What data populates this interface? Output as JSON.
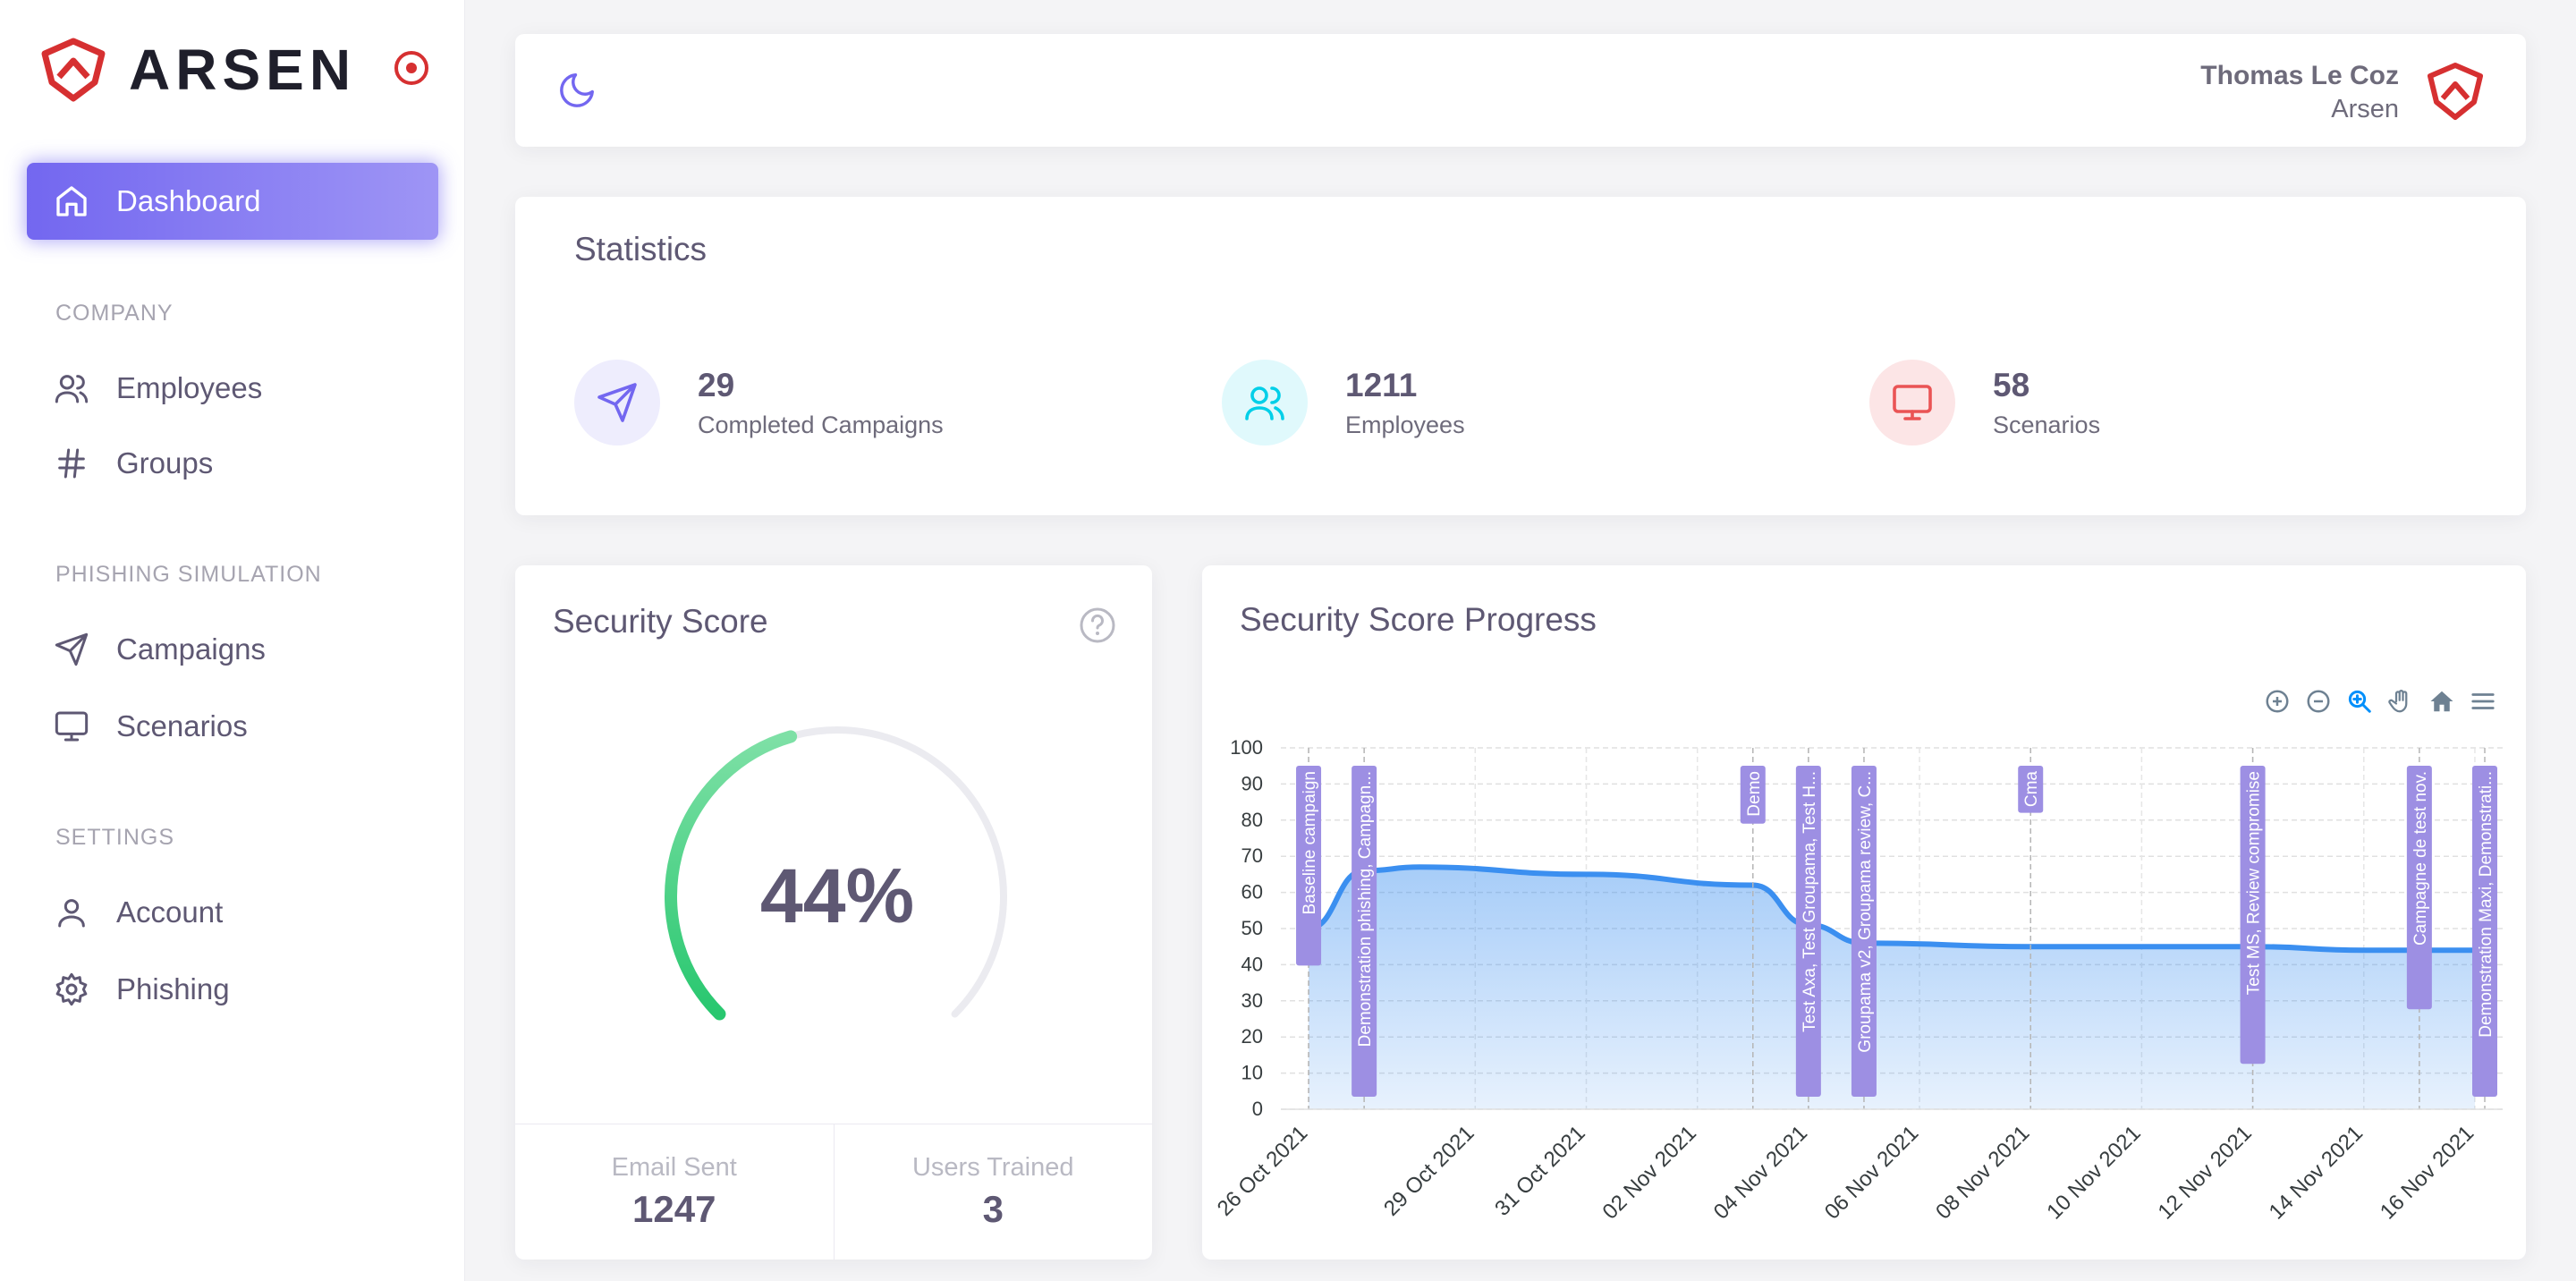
{
  "brand": {
    "name": "ARSEN"
  },
  "nav": {
    "dashboard": "Dashboard",
    "section_company": "COMPANY",
    "employees": "Employees",
    "groups": "Groups",
    "section_phishing": "PHISHING SIMULATION",
    "campaigns": "Campaigns",
    "scenarios": "Scenarios",
    "section_settings": "SETTINGS",
    "account": "Account",
    "phishing": "Phishing"
  },
  "header": {
    "user_name": "Thomas Le Coz",
    "user_org": "Arsen"
  },
  "stats": {
    "title": "Statistics",
    "items": [
      {
        "value": "29",
        "label": "Completed Campaigns",
        "icon": "send-icon",
        "color": "#7367f0"
      },
      {
        "value": "1211",
        "label": "Employees",
        "icon": "users-icon",
        "color": "#00cfe8"
      },
      {
        "value": "58",
        "label": "Scenarios",
        "icon": "monitor-icon",
        "color": "#ea5455"
      }
    ]
  },
  "score": {
    "title": "Security Score",
    "value_text": "44%",
    "value": 44,
    "email_sent_label": "Email Sent",
    "email_sent": "1247",
    "users_trained_label": "Users Trained",
    "users_trained": "3"
  },
  "progress": {
    "title": "Security Score Progress",
    "toolbar": [
      "zoom-in-icon",
      "zoom-out-icon",
      "zoom-select-icon",
      "pan-icon",
      "reset-home-icon",
      "menu-icon"
    ]
  },
  "colors": {
    "primary": "#7367f0",
    "success": "#28c76f",
    "line": "#3b8ff0",
    "danger": "#ea5455",
    "info": "#00cfe8"
  },
  "chart_data": {
    "type": "area",
    "ylim": [
      0,
      100
    ],
    "yticks": [
      0,
      10,
      20,
      30,
      40,
      50,
      60,
      70,
      80,
      90,
      100
    ],
    "x_ticks": [
      "26 Oct 2021",
      "29 Oct 2021",
      "31 Oct 2021",
      "02 Nov 2021",
      "04 Nov 2021",
      "06 Nov 2021",
      "08 Nov 2021",
      "10 Nov 2021",
      "12 Nov 2021",
      "14 Nov 2021",
      "16 Nov 2021"
    ],
    "series": [
      {
        "x": [
          "2021-10-26",
          "2021-10-27",
          "2021-10-28",
          "2021-10-31",
          "2021-11-03",
          "2021-11-04",
          "2021-11-05",
          "2021-11-08",
          "2021-11-12",
          "2021-11-14",
          "2021-11-16"
        ],
        "values": [
          50,
          66,
          67,
          65,
          62,
          51,
          46,
          45,
          45,
          44,
          44
        ]
      }
    ],
    "annotations": [
      {
        "x": "2021-10-26",
        "label": "Baseline campaign"
      },
      {
        "x": "2021-10-27",
        "label": "Demonstration phishing, Campagn..."
      },
      {
        "x": "2021-11-03",
        "label": "Demo"
      },
      {
        "x": "2021-11-04",
        "label": "Test Axa, Test Groupama, Test H..."
      },
      {
        "x": "2021-11-05",
        "label": "Groupama v2, Groupama review, C..."
      },
      {
        "x": "2021-11-08",
        "label": "Cma"
      },
      {
        "x": "2021-11-12",
        "label": "Test MS, Review compromise"
      },
      {
        "x": "2021-11-15",
        "label": "Campagne de test nov."
      },
      {
        "x": "2021-11-17",
        "label": "Demonstration Maxi, Demonstrati..."
      }
    ]
  }
}
